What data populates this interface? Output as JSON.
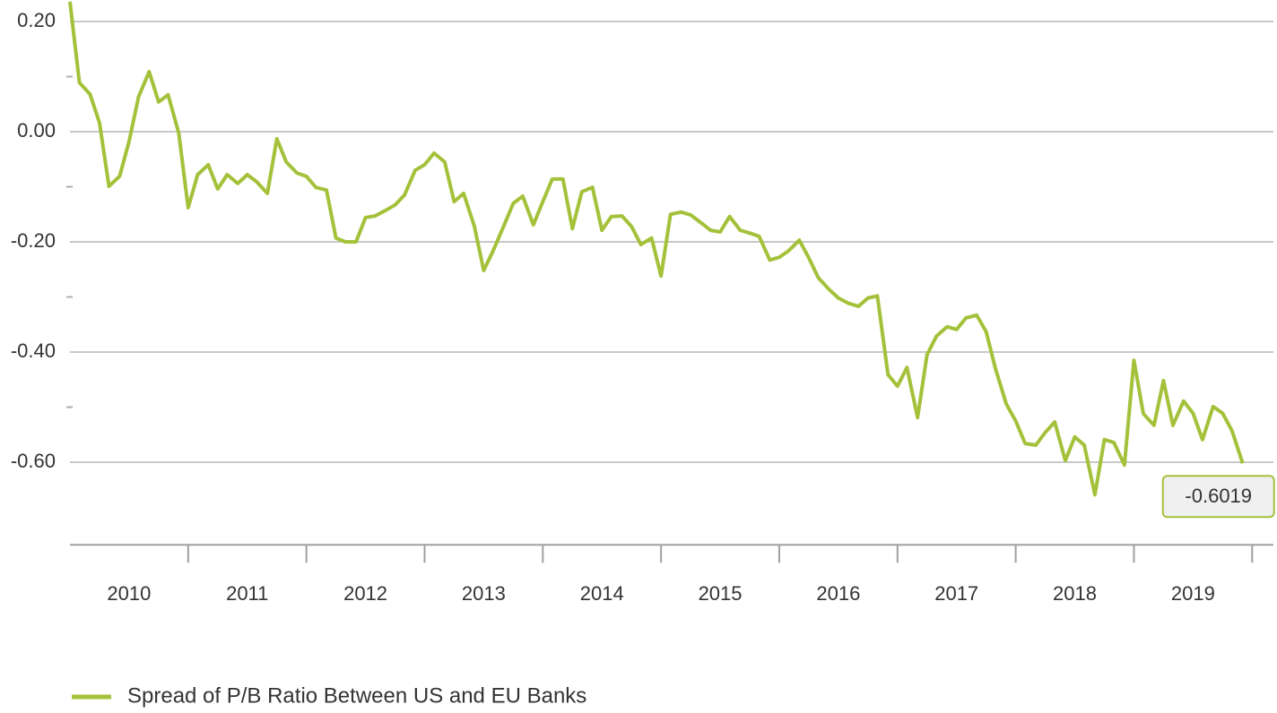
{
  "chart_data": {
    "type": "line",
    "x": [
      2010.0,
      2010.08,
      2010.17,
      2010.25,
      2010.33,
      2010.42,
      2010.5,
      2010.58,
      2010.67,
      2010.75,
      2010.83,
      2010.92,
      2011.0,
      2011.08,
      2011.17,
      2011.25,
      2011.33,
      2011.42,
      2011.5,
      2011.58,
      2011.67,
      2011.75,
      2011.83,
      2011.92,
      2012.0,
      2012.08,
      2012.17,
      2012.25,
      2012.33,
      2012.42,
      2012.5,
      2012.58,
      2012.67,
      2012.75,
      2012.83,
      2012.92,
      2013.0,
      2013.08,
      2013.17,
      2013.25,
      2013.33,
      2013.42,
      2013.5,
      2013.58,
      2013.67,
      2013.75,
      2013.83,
      2013.92,
      2014.0,
      2014.08,
      2014.17,
      2014.25,
      2014.33,
      2014.42,
      2014.5,
      2014.58,
      2014.67,
      2014.75,
      2014.83,
      2014.92,
      2015.0,
      2015.08,
      2015.17,
      2015.25,
      2015.33,
      2015.42,
      2015.5,
      2015.58,
      2015.67,
      2015.75,
      2015.83,
      2015.92,
      2016.0,
      2016.08,
      2016.17,
      2016.25,
      2016.33,
      2016.42,
      2016.5,
      2016.58,
      2016.67,
      2016.75,
      2016.83,
      2016.92,
      2017.0,
      2017.08,
      2017.17,
      2017.25,
      2017.33,
      2017.42,
      2017.5,
      2017.58,
      2017.67,
      2017.75,
      2017.83,
      2017.92,
      2018.0,
      2018.08,
      2018.17,
      2018.25,
      2018.33,
      2018.42,
      2018.5,
      2018.58,
      2018.67,
      2018.75,
      2018.83,
      2018.92,
      2019.0,
      2019.08,
      2019.17,
      2019.25,
      2019.33,
      2019.42,
      2019.5,
      2019.58,
      2019.67,
      2019.75,
      2019.83,
      2019.92
    ],
    "series": [
      {
        "name": "Spread of P/B Ratio Between US and EU Banks",
        "color": "#a4c13a",
        "values": [
          0.236,
          0.089,
          0.068,
          0.016,
          -0.099,
          -0.081,
          -0.018,
          0.063,
          0.109,
          0.054,
          0.067,
          -0.002,
          -0.138,
          -0.078,
          -0.06,
          -0.104,
          -0.078,
          -0.094,
          -0.078,
          -0.091,
          -0.112,
          -0.013,
          -0.055,
          -0.075,
          -0.081,
          -0.101,
          -0.106,
          -0.193,
          -0.2,
          -0.2,
          -0.156,
          -0.153,
          -0.143,
          -0.133,
          -0.115,
          -0.07,
          -0.06,
          -0.039,
          -0.055,
          -0.127,
          -0.112,
          -0.171,
          -0.252,
          -0.216,
          -0.171,
          -0.13,
          -0.117,
          -0.169,
          -0.127,
          -0.086,
          -0.086,
          -0.176,
          -0.109,
          -0.101,
          -0.179,
          -0.154,
          -0.153,
          -0.172,
          -0.205,
          -0.193,
          -0.262,
          -0.15,
          -0.146,
          -0.151,
          -0.164,
          -0.179,
          -0.182,
          -0.154,
          -0.179,
          -0.184,
          -0.19,
          -0.233,
          -0.228,
          -0.216,
          -0.197,
          -0.229,
          -0.265,
          -0.286,
          -0.302,
          -0.311,
          -0.317,
          -0.302,
          -0.298,
          -0.441,
          -0.462,
          -0.428,
          -0.519,
          -0.405,
          -0.371,
          -0.354,
          -0.359,
          -0.338,
          -0.333,
          -0.363,
          -0.431,
          -0.494,
          -0.525,
          -0.566,
          -0.569,
          -0.546,
          -0.527,
          -0.597,
          -0.554,
          -0.569,
          -0.659,
          -0.559,
          -0.564,
          -0.605,
          -0.415,
          -0.512,
          -0.533,
          -0.452,
          -0.533,
          -0.489,
          -0.511,
          -0.559,
          -0.499,
          -0.511,
          -0.543,
          -0.6019
        ]
      }
    ],
    "end_label": -0.6019,
    "categories": [
      "2010",
      "2011",
      "2012",
      "2013",
      "2014",
      "2015",
      "2016",
      "2017",
      "2018",
      "2019"
    ],
    "xlim": [
      2010,
      2020.18
    ],
    "xticks": [
      2011,
      2012,
      2013,
      2014,
      2015,
      2016,
      2017,
      2018,
      2019,
      2020
    ],
    "ylim": [
      -0.75,
      0.24
    ],
    "yticks": [
      {
        "value": 0.2,
        "label": "0.20"
      },
      {
        "value": 0,
        "label": "0.00"
      },
      {
        "value": -0.2,
        "label": "-0.20"
      },
      {
        "value": -0.4,
        "label": "-0.40"
      },
      {
        "value": -0.6,
        "label": "-0.60"
      }
    ],
    "yminorticks": [
      0.1,
      -0.1,
      -0.3,
      -0.5
    ],
    "grid": true,
    "legend": "bottom-left"
  }
}
